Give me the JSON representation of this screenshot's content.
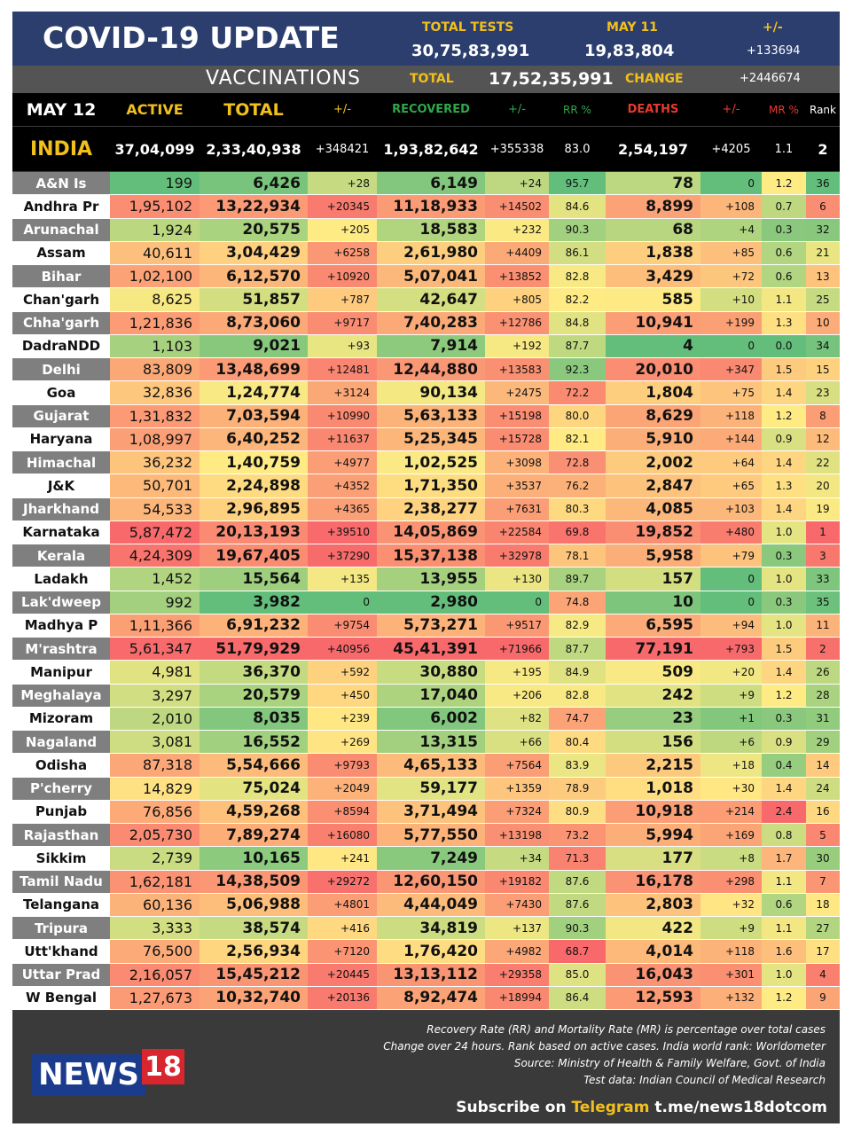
{
  "header": {
    "title": "COVID-19 UPDATE",
    "total_tests_label": "TOTAL TESTS",
    "total_tests_value": "30,75,83,991",
    "date_label": "MAY 11",
    "date_value": "19,83,804",
    "change_label": "+/-",
    "change_value": "+133694"
  },
  "vaccinations": {
    "label": "VACCINATIONS",
    "total_label": "TOTAL",
    "total_value": "17,52,35,991",
    "change_label": "CHANGE",
    "change_value": "+2446674"
  },
  "columns": {
    "date": "MAY 12",
    "active": "ACTIVE",
    "total": "TOTAL",
    "total_change": "+/-",
    "recovered": "RECOVERED",
    "recovered_change": "+/-",
    "rr": "RR %",
    "deaths": "DEATHS",
    "deaths_change": "+/-",
    "mr": "MR %",
    "rank": "Rank"
  },
  "india": {
    "name": "INDIA",
    "active": "37,04,099",
    "total": "2,33,40,938",
    "total_change": "+348421",
    "recovered": "1,93,82,642",
    "recovered_change": "+355338",
    "rr": "83.0",
    "deaths": "2,54,197",
    "deaths_change": "+4205",
    "mr": "1.1",
    "rank": "2"
  },
  "states": [
    {
      "name": "A&N Is",
      "active": "199",
      "total": "6,426",
      "tc": "+28",
      "rec": "6,149",
      "rc": "+24",
      "rr": "95.7",
      "deaths": "78",
      "dc": "0",
      "mr": "1.2",
      "rank": "36"
    },
    {
      "name": "Andhra Pr",
      "active": "1,95,102",
      "total": "13,22,934",
      "tc": "+20345",
      "rec": "11,18,933",
      "rc": "+14502",
      "rr": "84.6",
      "deaths": "8,899",
      "dc": "+108",
      "mr": "0.7",
      "rank": "6"
    },
    {
      "name": "Arunachal",
      "active": "1,924",
      "total": "20,575",
      "tc": "+205",
      "rec": "18,583",
      "rc": "+232",
      "rr": "90.3",
      "deaths": "68",
      "dc": "+4",
      "mr": "0.3",
      "rank": "32"
    },
    {
      "name": "Assam",
      "active": "40,611",
      "total": "3,04,429",
      "tc": "+6258",
      "rec": "2,61,980",
      "rc": "+4409",
      "rr": "86.1",
      "deaths": "1,838",
      "dc": "+85",
      "mr": "0.6",
      "rank": "21"
    },
    {
      "name": "Bihar",
      "active": "1,02,100",
      "total": "6,12,570",
      "tc": "+10920",
      "rec": "5,07,041",
      "rc": "+13852",
      "rr": "82.8",
      "deaths": "3,429",
      "dc": "+72",
      "mr": "0.6",
      "rank": "13"
    },
    {
      "name": "Chan'garh",
      "active": "8,625",
      "total": "51,857",
      "tc": "+787",
      "rec": "42,647",
      "rc": "+805",
      "rr": "82.2",
      "deaths": "585",
      "dc": "+10",
      "mr": "1.1",
      "rank": "25"
    },
    {
      "name": "Chha'garh",
      "active": "1,21,836",
      "total": "8,73,060",
      "tc": "+9717",
      "rec": "7,40,283",
      "rc": "+12786",
      "rr": "84.8",
      "deaths": "10,941",
      "dc": "+199",
      "mr": "1.3",
      "rank": "10"
    },
    {
      "name": "DadraNDD",
      "active": "1,103",
      "total": "9,021",
      "tc": "+93",
      "rec": "7,914",
      "rc": "+192",
      "rr": "87.7",
      "deaths": "4",
      "dc": "0",
      "mr": "0.0",
      "rank": "34"
    },
    {
      "name": "Delhi",
      "active": "83,809",
      "total": "13,48,699",
      "tc": "+12481",
      "rec": "12,44,880",
      "rc": "+13583",
      "rr": "92.3",
      "deaths": "20,010",
      "dc": "+347",
      "mr": "1.5",
      "rank": "15"
    },
    {
      "name": "Goa",
      "active": "32,836",
      "total": "1,24,774",
      "tc": "+3124",
      "rec": "90,134",
      "rc": "+2475",
      "rr": "72.2",
      "deaths": "1,804",
      "dc": "+75",
      "mr": "1.4",
      "rank": "23"
    },
    {
      "name": "Gujarat",
      "active": "1,31,832",
      "total": "7,03,594",
      "tc": "+10990",
      "rec": "5,63,133",
      "rc": "+15198",
      "rr": "80.0",
      "deaths": "8,629",
      "dc": "+118",
      "mr": "1.2",
      "rank": "8"
    },
    {
      "name": "Haryana",
      "active": "1,08,997",
      "total": "6,40,252",
      "tc": "+11637",
      "rec": "5,25,345",
      "rc": "+15728",
      "rr": "82.1",
      "deaths": "5,910",
      "dc": "+144",
      "mr": "0.9",
      "rank": "12"
    },
    {
      "name": "Himachal",
      "active": "36,232",
      "total": "1,40,759",
      "tc": "+4977",
      "rec": "1,02,525",
      "rc": "+3098",
      "rr": "72.8",
      "deaths": "2,002",
      "dc": "+64",
      "mr": "1.4",
      "rank": "22"
    },
    {
      "name": "J&K",
      "active": "50,701",
      "total": "2,24,898",
      "tc": "+4352",
      "rec": "1,71,350",
      "rc": "+3537",
      "rr": "76.2",
      "deaths": "2,847",
      "dc": "+65",
      "mr": "1.3",
      "rank": "20"
    },
    {
      "name": "Jharkhand",
      "active": "54,533",
      "total": "2,96,895",
      "tc": "+4365",
      "rec": "2,38,277",
      "rc": "+7631",
      "rr": "80.3",
      "deaths": "4,085",
      "dc": "+103",
      "mr": "1.4",
      "rank": "19"
    },
    {
      "name": "Karnataka",
      "active": "5,87,472",
      "total": "20,13,193",
      "tc": "+39510",
      "rec": "14,05,869",
      "rc": "+22584",
      "rr": "69.8",
      "deaths": "19,852",
      "dc": "+480",
      "mr": "1.0",
      "rank": "1"
    },
    {
      "name": "Kerala",
      "active": "4,24,309",
      "total": "19,67,405",
      "tc": "+37290",
      "rec": "15,37,138",
      "rc": "+32978",
      "rr": "78.1",
      "deaths": "5,958",
      "dc": "+79",
      "mr": "0.3",
      "rank": "3"
    },
    {
      "name": "Ladakh",
      "active": "1,452",
      "total": "15,564",
      "tc": "+135",
      "rec": "13,955",
      "rc": "+130",
      "rr": "89.7",
      "deaths": "157",
      "dc": "0",
      "mr": "1.0",
      "rank": "33"
    },
    {
      "name": "Lak'dweep",
      "active": "992",
      "total": "3,982",
      "tc": "0",
      "rec": "2,980",
      "rc": "0",
      "rr": "74.8",
      "deaths": "10",
      "dc": "0",
      "mr": "0.3",
      "rank": "35"
    },
    {
      "name": "Madhya P",
      "active": "1,11,366",
      "total": "6,91,232",
      "tc": "+9754",
      "rec": "5,73,271",
      "rc": "+9517",
      "rr": "82.9",
      "deaths": "6,595",
      "dc": "+94",
      "mr": "1.0",
      "rank": "11"
    },
    {
      "name": "M'rashtra",
      "active": "5,61,347",
      "total": "51,79,929",
      "tc": "+40956",
      "rec": "45,41,391",
      "rc": "+71966",
      "rr": "87.7",
      "deaths": "77,191",
      "dc": "+793",
      "mr": "1.5",
      "rank": "2"
    },
    {
      "name": "Manipur",
      "active": "4,981",
      "total": "36,370",
      "tc": "+592",
      "rec": "30,880",
      "rc": "+195",
      "rr": "84.9",
      "deaths": "509",
      "dc": "+20",
      "mr": "1.4",
      "rank": "26"
    },
    {
      "name": "Meghalaya",
      "active": "3,297",
      "total": "20,579",
      "tc": "+450",
      "rec": "17,040",
      "rc": "+206",
      "rr": "82.8",
      "deaths": "242",
      "dc": "+9",
      "mr": "1.2",
      "rank": "28"
    },
    {
      "name": "Mizoram",
      "active": "2,010",
      "total": "8,035",
      "tc": "+239",
      "rec": "6,002",
      "rc": "+82",
      "rr": "74.7",
      "deaths": "23",
      "dc": "+1",
      "mr": "0.3",
      "rank": "31"
    },
    {
      "name": "Nagaland",
      "active": "3,081",
      "total": "16,552",
      "tc": "+269",
      "rec": "13,315",
      "rc": "+66",
      "rr": "80.4",
      "deaths": "156",
      "dc": "+6",
      "mr": "0.9",
      "rank": "29"
    },
    {
      "name": "Odisha",
      "active": "87,318",
      "total": "5,54,666",
      "tc": "+9793",
      "rec": "4,65,133",
      "rc": "+7564",
      "rr": "83.9",
      "deaths": "2,215",
      "dc": "+18",
      "mr": "0.4",
      "rank": "14"
    },
    {
      "name": "P'cherry",
      "active": "14,829",
      "total": "75,024",
      "tc": "+2049",
      "rec": "59,177",
      "rc": "+1359",
      "rr": "78.9",
      "deaths": "1,018",
      "dc": "+30",
      "mr": "1.4",
      "rank": "24"
    },
    {
      "name": "Punjab",
      "active": "76,856",
      "total": "4,59,268",
      "tc": "+8594",
      "rec": "3,71,494",
      "rc": "+7324",
      "rr": "80.9",
      "deaths": "10,918",
      "dc": "+214",
      "mr": "2.4",
      "rank": "16"
    },
    {
      "name": "Rajasthan",
      "active": "2,05,730",
      "total": "7,89,274",
      "tc": "+16080",
      "rec": "5,77,550",
      "rc": "+13198",
      "rr": "73.2",
      "deaths": "5,994",
      "dc": "+169",
      "mr": "0.8",
      "rank": "5"
    },
    {
      "name": "Sikkim",
      "active": "2,739",
      "total": "10,165",
      "tc": "+241",
      "rec": "7,249",
      "rc": "+34",
      "rr": "71.3",
      "deaths": "177",
      "dc": "+8",
      "mr": "1.7",
      "rank": "30"
    },
    {
      "name": "Tamil Nadu",
      "active": "1,62,181",
      "total": "14,38,509",
      "tc": "+29272",
      "rec": "12,60,150",
      "rc": "+19182",
      "rr": "87.6",
      "deaths": "16,178",
      "dc": "+298",
      "mr": "1.1",
      "rank": "7"
    },
    {
      "name": "Telangana",
      "active": "60,136",
      "total": "5,06,988",
      "tc": "+4801",
      "rec": "4,44,049",
      "rc": "+7430",
      "rr": "87.6",
      "deaths": "2,803",
      "dc": "+32",
      "mr": "0.6",
      "rank": "18"
    },
    {
      "name": "Tripura",
      "active": "3,333",
      "total": "38,574",
      "tc": "+416",
      "rec": "34,819",
      "rc": "+137",
      "rr": "90.3",
      "deaths": "422",
      "dc": "+9",
      "mr": "1.1",
      "rank": "27"
    },
    {
      "name": "Utt'khand",
      "active": "76,500",
      "total": "2,56,934",
      "tc": "+7120",
      "rec": "1,76,420",
      "rc": "+4982",
      "rr": "68.7",
      "deaths": "4,014",
      "dc": "+118",
      "mr": "1.6",
      "rank": "17"
    },
    {
      "name": "Uttar Prad",
      "active": "2,16,057",
      "total": "15,45,212",
      "tc": "+20445",
      "rec": "13,13,112",
      "rc": "+29358",
      "rr": "85.0",
      "deaths": "16,043",
      "dc": "+301",
      "mr": "1.0",
      "rank": "4"
    },
    {
      "name": "W Bengal",
      "active": "1,27,673",
      "total": "10,32,740",
      "tc": "+20136",
      "rec": "8,92,474",
      "rc": "+18994",
      "rr": "86.4",
      "deaths": "12,593",
      "dc": "+132",
      "mr": "1.2",
      "rank": "9"
    }
  ],
  "footer": {
    "logo_text": "NEWS",
    "logo_number": "18",
    "note1": "Recovery Rate (RR) and Mortality Rate (MR) is percentage over total cases",
    "note2": "Change over 24 hours. Rank based on active cases. India world rank: Worldometer",
    "note3": "Source: Ministry of Health & Family Welfare, Govt. of India",
    "note4": "Test data: Indian Council of Medical Research",
    "subscribe_prefix": "Subscribe on",
    "subscribe_platform": "Telegram",
    "subscribe_link": "t.me/news18dotcom"
  },
  "colors": {
    "header_blue": "#2b3e6e",
    "accent_yellow": "#f2c01c",
    "recovered_green": "#2ea84a",
    "deaths_red": "#e63a2e",
    "scale_green": "#63be7b",
    "scale_yellow": "#ffeb84",
    "scale_red": "#f8696b"
  }
}
